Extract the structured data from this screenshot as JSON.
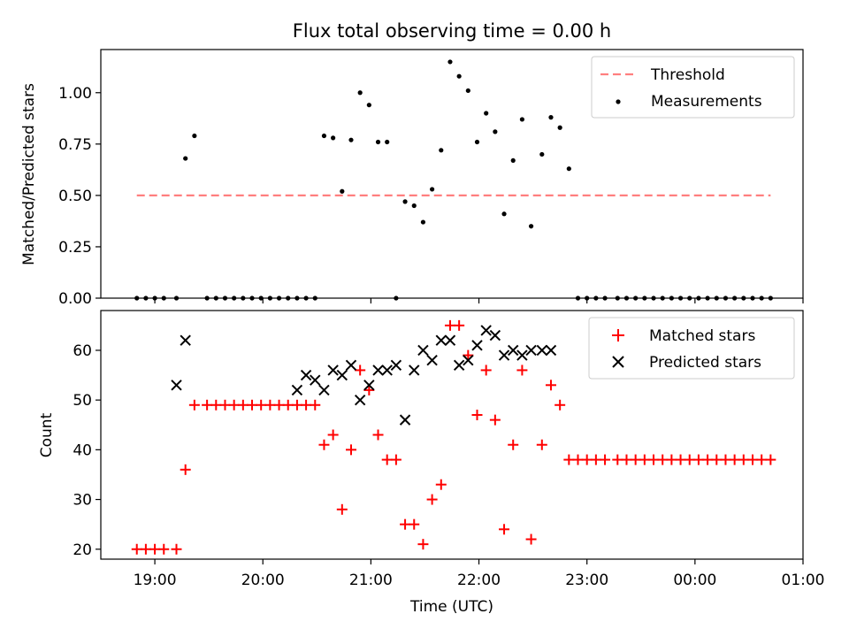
{
  "chart_data": [
    {
      "type": "scatter",
      "title": "Flux total observing time = 0.00 h",
      "xlabel": "",
      "ylabel": "Matched/Predicted stars",
      "ylim": [
        0,
        1.21
      ],
      "yticks": [
        "0.00",
        "0.25",
        "0.50",
        "0.75",
        "1.00"
      ],
      "xlim_hours": [
        18.5,
        25.0
      ],
      "x_tick_hours": [
        19,
        20,
        21,
        22,
        23,
        24,
        25
      ],
      "legend": {
        "placement": "upper right",
        "entries": [
          "Threshold",
          "Measurements"
        ]
      },
      "threshold": {
        "name": "Threshold",
        "value": 0.5,
        "x_range": [
          "18:50",
          "00:42"
        ],
        "color": "#ff7f7f"
      },
      "series": [
        {
          "name": "Measurements",
          "color": "#000000",
          "x": [
            "18:50",
            "18:55",
            "19:00",
            "19:05",
            "19:12",
            "19:17",
            "19:22",
            "19:29",
            "19:34",
            "19:39",
            "19:44",
            "19:49",
            "19:54",
            "19:59",
            "20:04",
            "20:09",
            "20:14",
            "20:19",
            "20:24",
            "20:29",
            "20:34",
            "20:39",
            "20:44",
            "20:49",
            "20:54",
            "20:59",
            "21:04",
            "21:09",
            "21:14",
            "21:19",
            "21:24",
            "21:29",
            "21:34",
            "21:39",
            "21:44",
            "21:49",
            "21:54",
            "21:59",
            "22:04",
            "22:09",
            "22:14",
            "22:19",
            "22:24",
            "22:29",
            "22:35",
            "22:40",
            "22:45",
            "22:50",
            "22:55",
            "23:00",
            "23:05",
            "23:10",
            "23:17",
            "23:22",
            "23:27",
            "23:32",
            "23:37",
            "23:42",
            "23:47",
            "23:52",
            "23:57",
            "00:02",
            "00:07",
            "00:12",
            "00:17",
            "00:22",
            "00:27",
            "00:32",
            "00:37",
            "00:42"
          ],
          "y": [
            0,
            0,
            0,
            0,
            0,
            0.68,
            0.79,
            0,
            0,
            0,
            0,
            0,
            0,
            0,
            0,
            0,
            0,
            0,
            0,
            0,
            0.79,
            0.78,
            0.52,
            0.77,
            1.0,
            0.94,
            0.76,
            0.76,
            0,
            0.47,
            0.45,
            0.37,
            0.53,
            0.72,
            1.15,
            1.08,
            1.01,
            0.76,
            0.9,
            0.81,
            0.41,
            0.67,
            0.87,
            0.35,
            0.7,
            0.88,
            0.83,
            0.63,
            0,
            0,
            0,
            0,
            0,
            0,
            0,
            0,
            0,
            0,
            0,
            0,
            0,
            0,
            0,
            0,
            0,
            0,
            0,
            0,
            0,
            0
          ]
        }
      ]
    },
    {
      "type": "scatter",
      "title": "",
      "xlabel": "Time (UTC)",
      "ylabel": "Count",
      "ylim": [
        18,
        68
      ],
      "yticks": [
        "20",
        "30",
        "40",
        "50",
        "60"
      ],
      "xlim_hours": [
        18.5,
        25.0
      ],
      "x_tick_hours": [
        19,
        20,
        21,
        22,
        23,
        24,
        25
      ],
      "xticks": [
        "19:00",
        "20:00",
        "21:00",
        "22:00",
        "23:00",
        "00:00",
        "01:00"
      ],
      "legend": {
        "placement": "upper right",
        "entries": [
          "Matched stars",
          "Predicted stars"
        ]
      },
      "series": [
        {
          "name": "Matched stars",
          "marker": "+",
          "color": "#ff0000",
          "x": [
            "18:50",
            "18:55",
            "19:00",
            "19:05",
            "19:12",
            "19:17",
            "19:22",
            "19:29",
            "19:34",
            "19:39",
            "19:44",
            "19:49",
            "19:54",
            "19:59",
            "20:04",
            "20:09",
            "20:14",
            "20:19",
            "20:24",
            "20:29",
            "20:34",
            "20:39",
            "20:44",
            "20:49",
            "20:54",
            "20:59",
            "21:04",
            "21:09",
            "21:14",
            "21:19",
            "21:24",
            "21:29",
            "21:34",
            "21:39",
            "21:44",
            "21:49",
            "21:54",
            "21:59",
            "22:04",
            "22:09",
            "22:14",
            "22:19",
            "22:24",
            "22:29",
            "22:35",
            "22:40",
            "22:45",
            "22:50",
            "22:55",
            "23:00",
            "23:05",
            "23:10",
            "23:17",
            "23:22",
            "23:27",
            "23:32",
            "23:37",
            "23:42",
            "23:47",
            "23:52",
            "23:57",
            "00:02",
            "00:07",
            "00:12",
            "00:17",
            "00:22",
            "00:27",
            "00:32",
            "00:37",
            "00:42"
          ],
          "y": [
            20,
            20,
            20,
            20,
            20,
            36,
            49,
            49,
            49,
            49,
            49,
            49,
            49,
            49,
            49,
            49,
            49,
            49,
            49,
            49,
            41,
            43,
            28,
            40,
            56,
            52,
            43,
            38,
            38,
            25,
            25,
            21,
            30,
            33,
            65,
            65,
            59,
            47,
            56,
            46,
            24,
            41,
            56,
            22,
            41,
            53,
            49,
            38,
            38,
            38,
            38,
            38,
            38,
            38,
            38,
            38,
            38,
            38,
            38,
            38,
            38,
            38,
            38,
            38,
            38,
            38,
            38,
            38,
            38,
            38
          ]
        },
        {
          "name": "Predicted stars",
          "marker": "x",
          "color": "#000000",
          "x": [
            "19:12",
            "19:17",
            "20:19",
            "20:24",
            "20:29",
            "20:34",
            "20:39",
            "20:44",
            "20:49",
            "20:54",
            "20:59",
            "21:04",
            "21:09",
            "21:14",
            "21:19",
            "21:24",
            "21:29",
            "21:34",
            "21:39",
            "21:44",
            "21:49",
            "21:54",
            "21:59",
            "22:04",
            "22:09",
            "22:14",
            "22:19",
            "22:24",
            "22:29",
            "22:35",
            "22:40"
          ],
          "y": [
            53,
            62,
            52,
            55,
            54,
            52,
            56,
            55,
            57,
            50,
            53,
            56,
            56,
            57,
            46,
            56,
            60,
            58,
            62,
            62,
            57,
            58,
            61,
            64,
            63,
            59,
            60,
            59,
            60,
            60,
            60
          ]
        }
      ]
    }
  ]
}
